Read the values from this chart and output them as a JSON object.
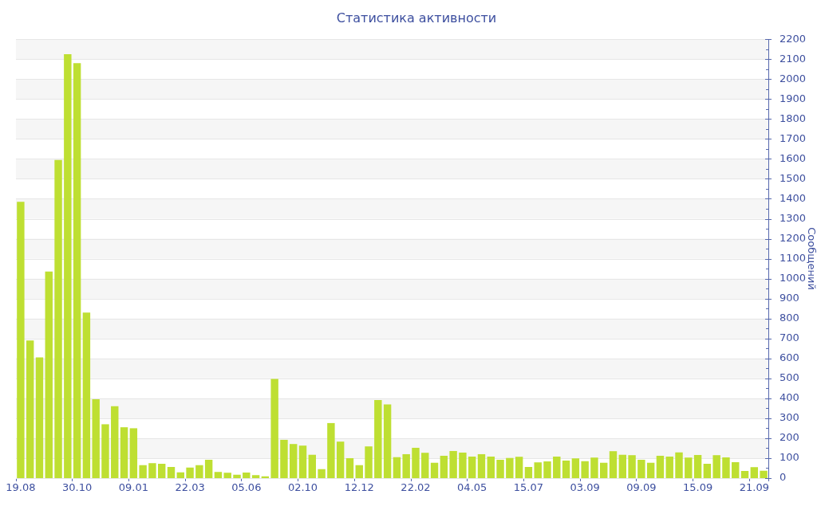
{
  "chart_data": {
    "type": "bar",
    "title": "Статистика активности",
    "ylabel": "Сообщений",
    "categories": [
      "19.08",
      null,
      null,
      null,
      null,
      null,
      "30.10",
      null,
      null,
      null,
      null,
      null,
      "09.01",
      null,
      null,
      null,
      null,
      null,
      "22.03",
      null,
      null,
      null,
      null,
      null,
      "05.06",
      null,
      null,
      null,
      null,
      null,
      "02.10",
      null,
      null,
      null,
      null,
      null,
      "12.12",
      null,
      null,
      null,
      null,
      null,
      "22.02",
      null,
      null,
      null,
      null,
      null,
      "04.05",
      null,
      null,
      null,
      null,
      null,
      "15.07",
      null,
      null,
      null,
      null,
      null,
      "03.09",
      null,
      null,
      null,
      null,
      null,
      "09.09",
      null,
      null,
      null,
      null,
      null,
      "15.09",
      null,
      null,
      null,
      null,
      null,
      "21.09",
      null
    ],
    "values": [
      1385,
      690,
      605,
      1035,
      1595,
      2125,
      2080,
      830,
      395,
      270,
      360,
      255,
      250,
      65,
      75,
      72,
      56,
      29,
      53,
      65,
      92,
      31,
      27,
      17,
      28,
      15,
      9,
      497,
      192,
      171,
      163,
      117,
      45,
      276,
      183,
      100,
      65,
      159,
      391,
      369,
      105,
      120,
      152,
      127,
      77,
      112,
      136,
      128,
      108,
      120,
      108,
      92,
      101,
      107,
      56,
      79,
      84,
      108,
      88,
      99,
      85,
      103,
      77,
      135,
      117,
      115,
      92,
      77,
      112,
      108,
      129,
      103,
      116,
      72,
      115,
      104,
      80,
      36,
      55,
      37
    ],
    "color": "#bedf32",
    "ylim": [
      0,
      2200
    ],
    "yticks": [
      0,
      {
        "value": 50,
        "label": null
      },
      100,
      {
        "value": 150,
        "label": null
      },
      200,
      {
        "value": 250,
        "label": null
      },
      300,
      {
        "value": 350,
        "label": null
      },
      400,
      {
        "value": 450,
        "label": null
      },
      500,
      {
        "value": 550,
        "label": null
      },
      600,
      {
        "value": 650,
        "label": null
      },
      700,
      {
        "value": 750,
        "label": null
      },
      800,
      {
        "value": 850,
        "label": null
      },
      900,
      {
        "value": 950,
        "label": null
      },
      1000,
      {
        "value": 1050,
        "label": null
      },
      1100,
      {
        "value": 1150,
        "label": null
      },
      1200,
      {
        "value": 1250,
        "label": null
      },
      1300,
      {
        "value": 1350,
        "label": null
      },
      1400,
      {
        "value": 1450,
        "label": null
      },
      1500,
      {
        "value": 1550,
        "label": null
      },
      1600,
      {
        "value": 1650,
        "label": null
      },
      1700,
      {
        "value": 1750,
        "label": null
      },
      1800,
      {
        "value": 1850,
        "label": null
      },
      1900,
      {
        "value": 1950,
        "label": null
      },
      2000,
      {
        "value": 2050,
        "label": null
      },
      2100,
      {
        "value": 2150,
        "label": null
      },
      2200
    ],
    "grid": "y"
  }
}
